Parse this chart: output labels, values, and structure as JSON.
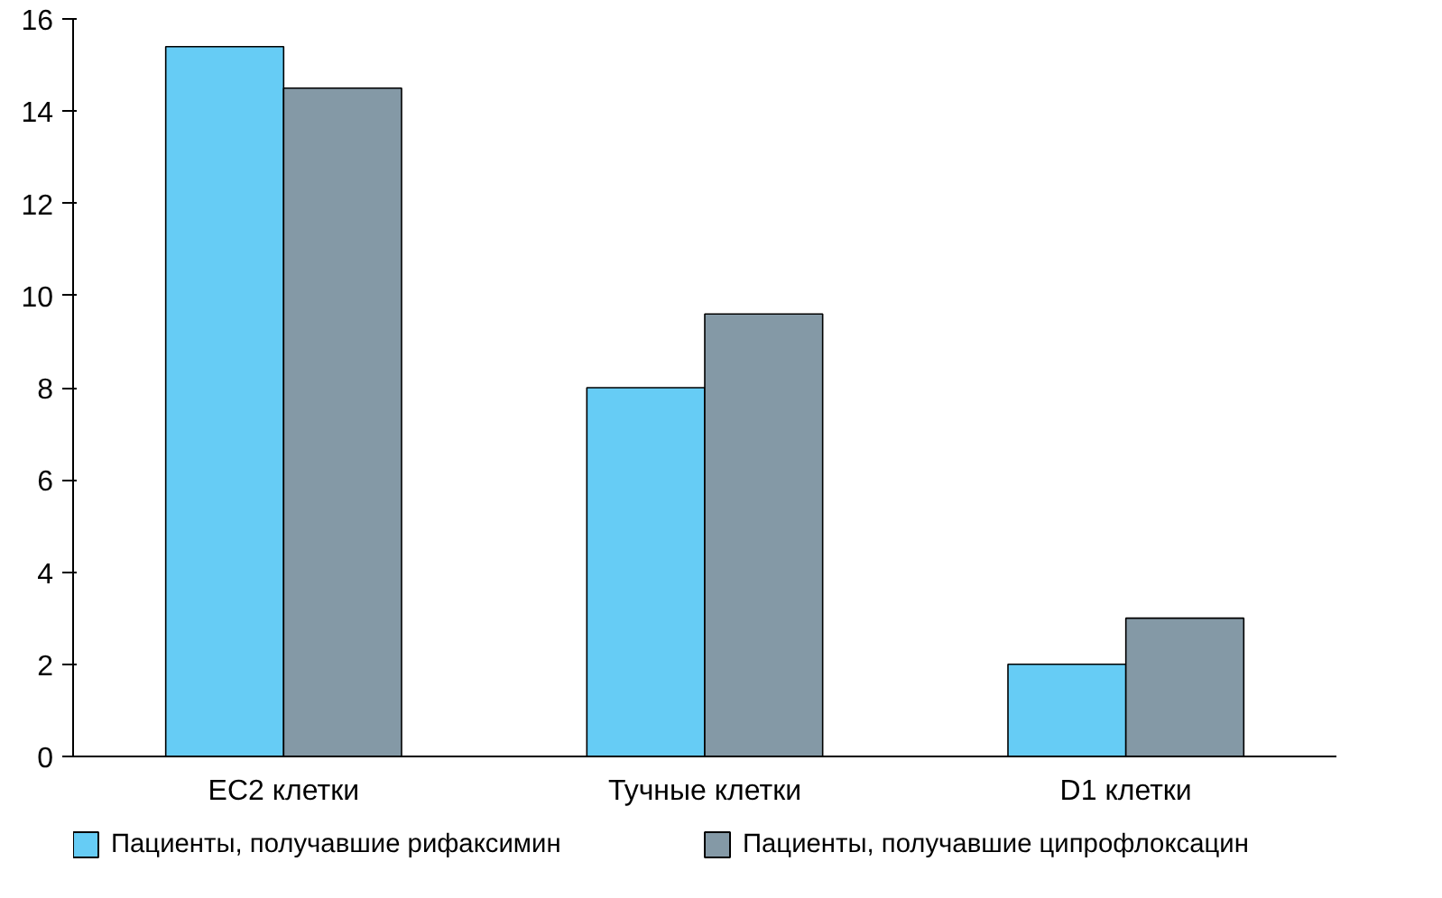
{
  "chart_data": {
    "type": "bar",
    "categories": [
      "EC2 клетки",
      "Тучные клетки",
      "D1 клетки"
    ],
    "series": [
      {
        "name": "Пациенты, получавшие рифаксимин",
        "color": "#66ccf5",
        "values": [
          15.4,
          8.0,
          2.0
        ]
      },
      {
        "name": "Пациенты, получавшие ципрофлоксацин",
        "color": "#8499a6",
        "values": [
          14.5,
          9.6,
          3.0
        ]
      }
    ],
    "ylim": [
      0,
      16
    ],
    "yticks": [
      0,
      2,
      4,
      6,
      8,
      10,
      12,
      14,
      16
    ],
    "grid": false,
    "legend": "bottom"
  }
}
